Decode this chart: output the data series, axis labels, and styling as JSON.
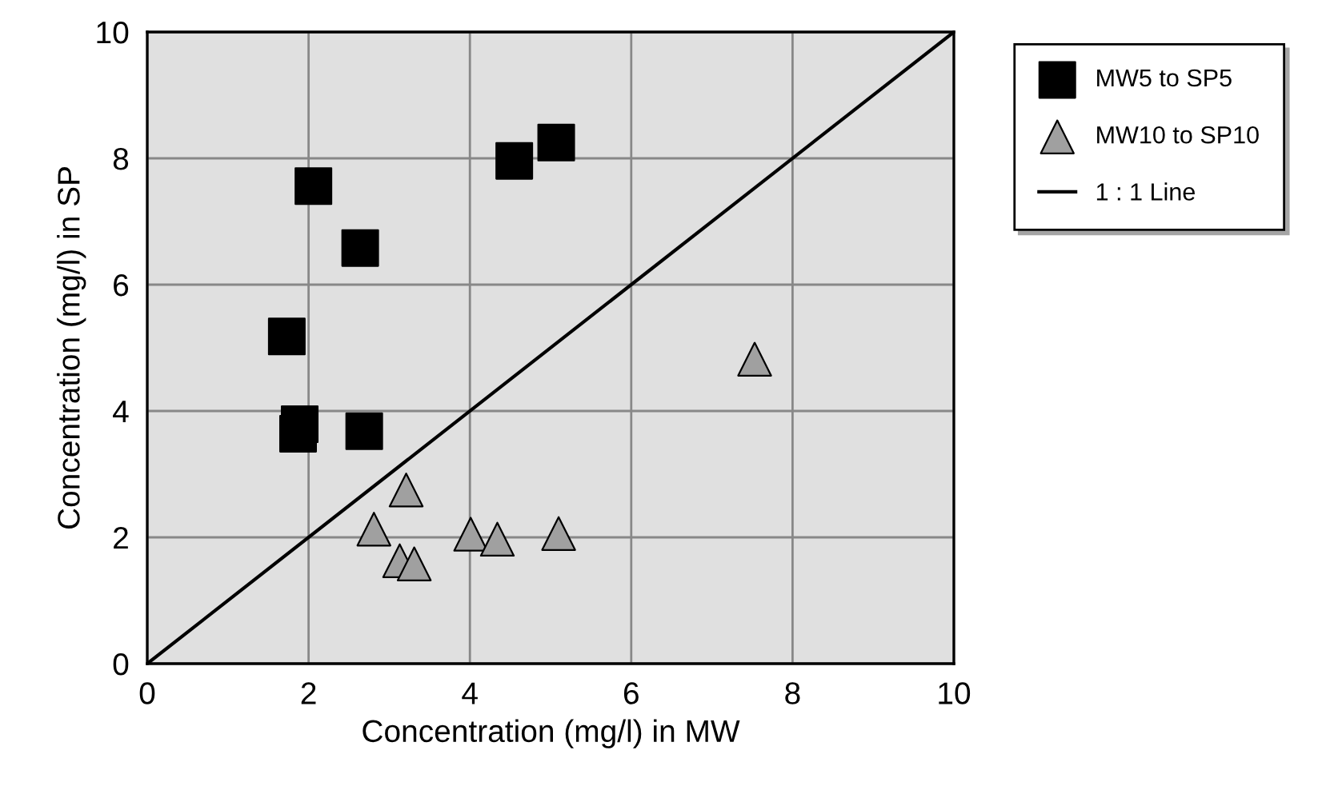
{
  "chart_data": {
    "type": "scatter",
    "xlabel": "Concentration (mg/l) in MW",
    "ylabel": "Concentration (mg/l) in SP",
    "xlim": [
      0,
      10
    ],
    "ylim": [
      0,
      10
    ],
    "xticks": [
      0,
      2,
      4,
      6,
      8,
      10
    ],
    "yticks": [
      0,
      2,
      4,
      6,
      8,
      10
    ],
    "grid": true,
    "legend": "right",
    "series": [
      {
        "name": "MW5 to SP5",
        "color": "#000000",
        "marker": "square",
        "x": [
          2.06,
          2.64,
          1.73,
          1.89,
          1.87,
          2.69,
          4.55,
          5.07
        ],
        "values": [
          7.56,
          6.58,
          5.18,
          3.79,
          3.64,
          3.68,
          7.96,
          8.25
        ]
      },
      {
        "name": "MW10 to SP10",
        "color": "#a0a0a0",
        "marker": "triangle",
        "x": [
          3.21,
          2.81,
          3.13,
          3.31,
          4.01,
          4.34,
          5.1,
          7.53
        ],
        "values": [
          2.75,
          2.13,
          1.63,
          1.58,
          2.05,
          1.97,
          2.06,
          4.82
        ]
      },
      {
        "name": "1 : 1 Line",
        "type": "line",
        "color": "#000000",
        "marker": "none",
        "x": [
          0,
          10
        ],
        "values": [
          0,
          10
        ]
      }
    ]
  }
}
